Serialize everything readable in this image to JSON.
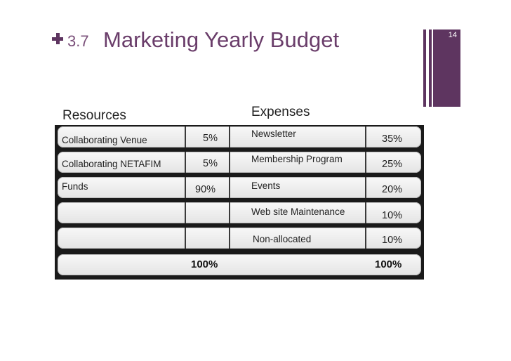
{
  "header": {
    "section_number": "3.7",
    "title": "Marketing Yearly Budget",
    "slide_number": "14"
  },
  "colors": {
    "accent": "#5e3560",
    "title": "#6a3d6a"
  },
  "table": {
    "resources_heading": "Resources",
    "expenses_heading": "Expenses",
    "rows": [
      {
        "resource": "Collaborating Venue",
        "resource_pct": "5%",
        "expense": "Newsletter",
        "expense_pct": "35%"
      },
      {
        "resource": "Collaborating NETAFIM",
        "resource_pct": "5%",
        "expense": "Membership Program",
        "expense_pct": "25%"
      },
      {
        "resource": "Funds",
        "resource_pct": "90%",
        "expense": "Events",
        "expense_pct": "20%"
      },
      {
        "resource": "",
        "resource_pct": "",
        "expense": "Web site Maintenance",
        "expense_pct": "10%"
      },
      {
        "resource": "",
        "resource_pct": "",
        "expense": "Non-allocated",
        "expense_pct": "10%"
      }
    ],
    "total_resources": "100%",
    "total_expenses": "100%"
  }
}
